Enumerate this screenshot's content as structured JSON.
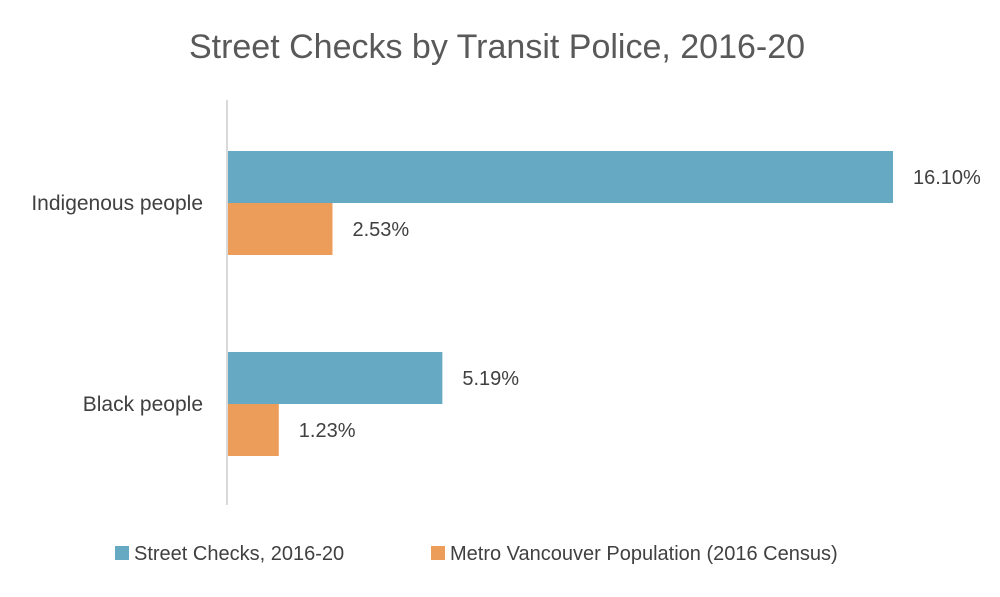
{
  "chart_data": {
    "type": "bar",
    "orientation": "horizontal",
    "title": "Street Checks by Transit Police, 2016-20",
    "xlabel": "",
    "ylabel": "",
    "xlim": [
      0,
      17
    ],
    "grid": false,
    "legend_position": "bottom",
    "categories": [
      "Indigenous people",
      "Black people"
    ],
    "series": [
      {
        "name": "Street Checks, 2016-20",
        "color": "#65A9C3",
        "values": [
          16.1,
          5.19
        ],
        "labels": [
          "16.10%",
          "5.19%"
        ]
      },
      {
        "name": "Metro Vancouver Population (2016 Census)",
        "color": "#EC9D5A",
        "values": [
          2.53,
          1.23
        ],
        "labels": [
          "2.53%",
          "1.23%"
        ]
      }
    ]
  }
}
